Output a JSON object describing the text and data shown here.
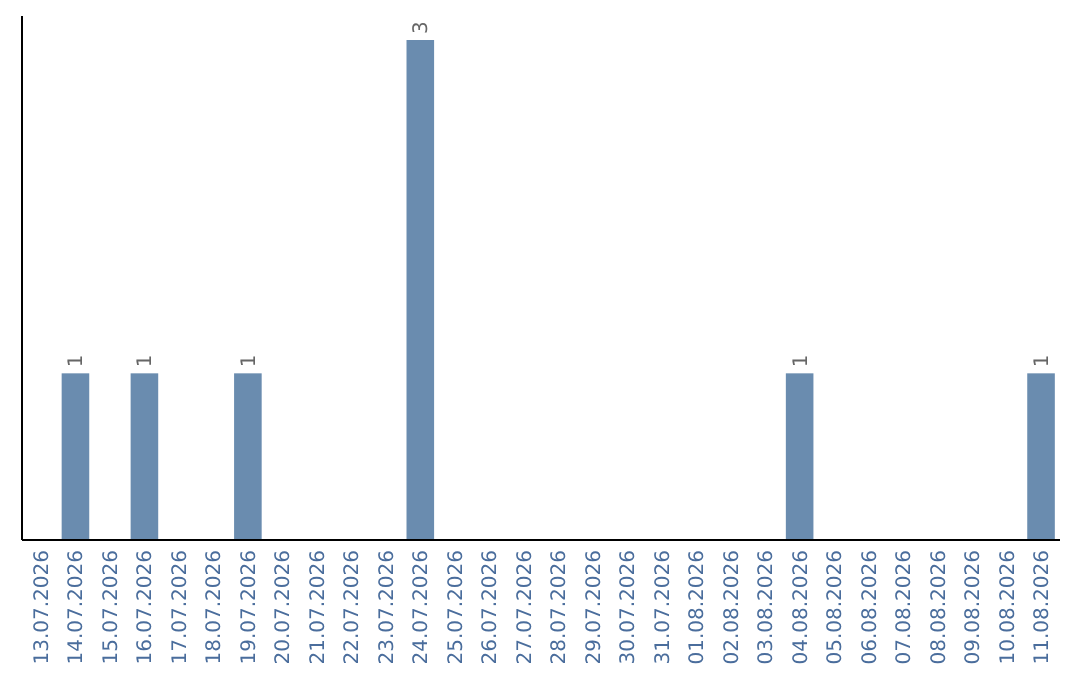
{
  "chart_data": {
    "type": "bar",
    "categories": [
      "13.07.2026",
      "14.07.2026",
      "15.07.2026",
      "16.07.2026",
      "17.07.2026",
      "18.07.2026",
      "19.07.2026",
      "20.07.2026",
      "21.07.2026",
      "22.07.2026",
      "23.07.2026",
      "24.07.2026",
      "25.07.2026",
      "26.07.2026",
      "27.07.2026",
      "28.07.2026",
      "29.07.2026",
      "30.07.2026",
      "31.07.2026",
      "01.08.2026",
      "02.08.2026",
      "03.08.2026",
      "04.08.2026",
      "05.08.2026",
      "06.08.2026",
      "07.08.2026",
      "08.08.2026",
      "09.08.2026",
      "10.08.2026",
      "11.08.2026"
    ],
    "values": [
      0,
      1,
      0,
      1,
      0,
      0,
      1,
      0,
      0,
      0,
      0,
      3,
      0,
      0,
      0,
      0,
      0,
      0,
      0,
      0,
      0,
      0,
      1,
      0,
      0,
      0,
      0,
      0,
      0,
      1
    ],
    "value_labels": [
      null,
      "1",
      null,
      "1",
      null,
      null,
      "1",
      null,
      null,
      null,
      null,
      "3",
      null,
      null,
      null,
      null,
      null,
      null,
      null,
      null,
      null,
      null,
      "1",
      null,
      null,
      null,
      null,
      null,
      null,
      "1"
    ],
    "color": "#6a8caf",
    "tick_labels": "x",
    "grid": false
  }
}
